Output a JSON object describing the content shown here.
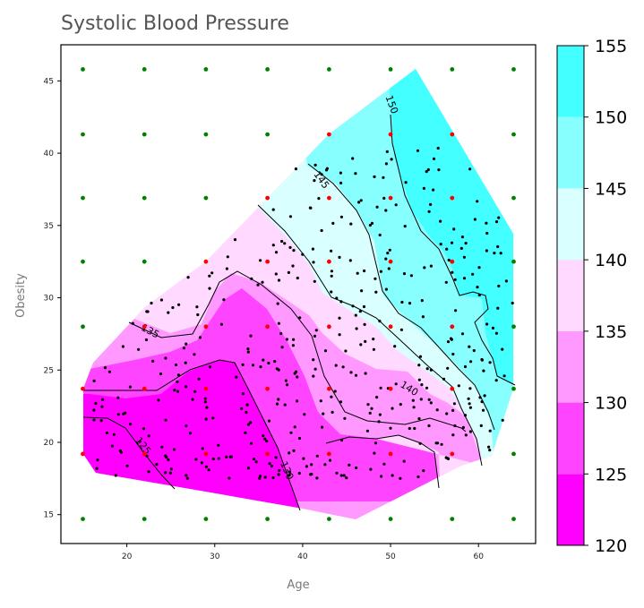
{
  "chart_data": {
    "type": "contour",
    "title": "Systolic Blood Pressure",
    "xlabel": "Age",
    "ylabel": "Obesity",
    "xlim": [
      12.5,
      66.5
    ],
    "ylim": [
      13,
      47.5
    ],
    "x_ticks": [
      20,
      30,
      40,
      50,
      60
    ],
    "y_ticks": [
      15,
      20,
      25,
      30,
      35,
      40,
      45
    ],
    "colorbar": {
      "levels": [
        120,
        125,
        130,
        135,
        140,
        145,
        150,
        155
      ],
      "tick_labels": [
        "120",
        "125",
        "130",
        "135",
        "140",
        "145",
        "150",
        "155"
      ],
      "band_colors": [
        "#ff00ff",
        "#ff44ff",
        "#ff99ff",
        "#ffd9ff",
        "#d9ffff",
        "#88ffff",
        "#44ffff"
      ]
    },
    "contour_labels": [
      "125",
      "130",
      "135",
      "140",
      "145",
      "150"
    ],
    "grid_points": {
      "xs": [
        15,
        22,
        29,
        36,
        43,
        50,
        57,
        64
      ],
      "ys": [
        14.7,
        19.2,
        23.7,
        28.0,
        32.5,
        36.9,
        41.3,
        45.8
      ],
      "inside_color": "#ff0000",
      "outside_color": "#008000"
    },
    "hull": [
      [
        15,
        23.7
      ],
      [
        16.2,
        25.5
      ],
      [
        22,
        29.3
      ],
      [
        29,
        32.5
      ],
      [
        36,
        36.9
      ],
      [
        43,
        41.3
      ],
      [
        52.8,
        45.8
      ],
      [
        64,
        34.4
      ],
      [
        64,
        23.7
      ],
      [
        61.5,
        19.1
      ],
      [
        58,
        18.4
      ],
      [
        46,
        14.7
      ],
      [
        40,
        15.4
      ],
      [
        29,
        16.6
      ],
      [
        16.5,
        17.9
      ],
      [
        15,
        19.2
      ]
    ]
  }
}
